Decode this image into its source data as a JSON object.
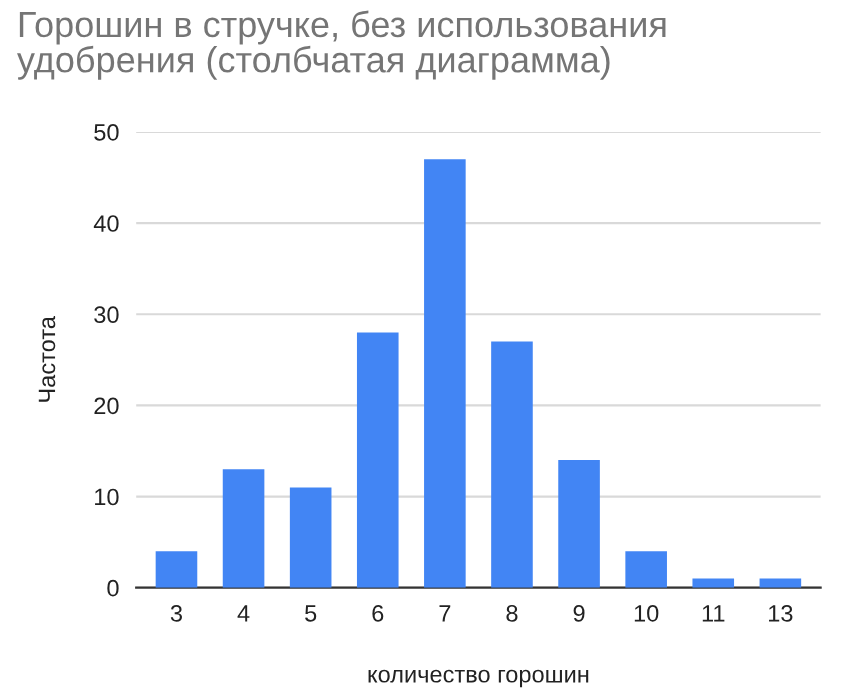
{
  "chart_data": {
    "type": "bar",
    "title": "Горошин в стручке, без использования удобрения (столбчатая диаграмма)",
    "xlabel": "количество горошин",
    "ylabel": "Частота",
    "categories": [
      "3",
      "4",
      "5",
      "6",
      "7",
      "8",
      "9",
      "10",
      "11",
      "13"
    ],
    "values": [
      4,
      13,
      11,
      28,
      47,
      27,
      14,
      4,
      1,
      1
    ],
    "color": "#4285f4",
    "ylim": [
      0,
      50
    ],
    "yticks": [
      0,
      10,
      20,
      30,
      40,
      50
    ],
    "grid": "y",
    "legend": false
  }
}
